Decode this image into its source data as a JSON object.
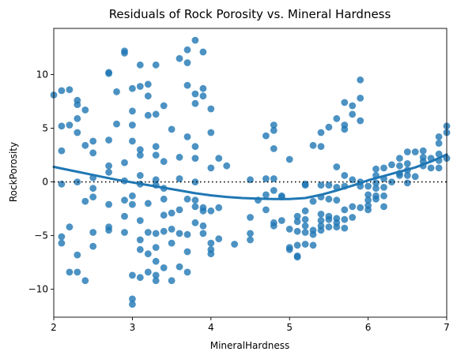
{
  "colors": {
    "points": "#1f77b4",
    "lowess": "#1f77b4",
    "reference": "#000000"
  },
  "chart_data": {
    "type": "scatter",
    "title": "Residuals of Rock Porosity vs. Mineral Hardness",
    "xlabel": "MineralHardness",
    "ylabel": "RockPorosity",
    "xlim": [
      2,
      7
    ],
    "ylim": [
      -12.6,
      14.3
    ],
    "xticks": [
      2,
      3,
      4,
      5,
      6,
      7
    ],
    "yticks": [
      -10,
      -5,
      0,
      5,
      10
    ],
    "grid": false,
    "legend": "none",
    "reference_line": {
      "y": 0,
      "style": "dotted"
    },
    "points": [
      [
        2.0,
        8.1
      ],
      [
        2.1,
        8.5
      ],
      [
        2.1,
        5.2
      ],
      [
        2.1,
        2.9
      ],
      [
        2.1,
        -0.2
      ],
      [
        2.1,
        -5.1
      ],
      [
        2.1,
        -5.7
      ],
      [
        2.2,
        8.6
      ],
      [
        2.2,
        5.3
      ],
      [
        2.2,
        -4.2
      ],
      [
        2.2,
        -8.4
      ],
      [
        2.3,
        7.6
      ],
      [
        2.3,
        7.2
      ],
      [
        2.3,
        5.9
      ],
      [
        2.3,
        4.6
      ],
      [
        2.3,
        0.0
      ],
      [
        2.3,
        -6.8
      ],
      [
        2.3,
        -8.4
      ],
      [
        2.4,
        6.7
      ],
      [
        2.4,
        3.4
      ],
      [
        2.4,
        -1.8
      ],
      [
        2.4,
        -9.2
      ],
      [
        2.5,
        3.8
      ],
      [
        2.5,
        2.7
      ],
      [
        2.5,
        0.4
      ],
      [
        2.5,
        -0.6
      ],
      [
        2.5,
        -1.4
      ],
      [
        2.5,
        -4.7
      ],
      [
        2.5,
        -6.0
      ],
      [
        2.7,
        10.1
      ],
      [
        2.7,
        10.2
      ],
      [
        2.7,
        3.9
      ],
      [
        2.7,
        1.5
      ],
      [
        2.7,
        0.9
      ],
      [
        2.7,
        -2.1
      ],
      [
        2.7,
        -4.2
      ],
      [
        2.7,
        -4.5
      ],
      [
        2.8,
        8.4
      ],
      [
        2.8,
        5.4
      ],
      [
        2.9,
        12.2
      ],
      [
        2.9,
        12.0
      ],
      [
        2.9,
        1.8
      ],
      [
        2.9,
        0.1
      ],
      [
        2.9,
        -1.7
      ],
      [
        2.9,
        -3.2
      ],
      [
        2.9,
        -4.7
      ],
      [
        3.0,
        8.7
      ],
      [
        3.0,
        6.6
      ],
      [
        3.0,
        5.3
      ],
      [
        3.0,
        3.8
      ],
      [
        3.0,
        -1.3
      ],
      [
        3.0,
        -2.1
      ],
      [
        3.0,
        -8.7
      ],
      [
        3.0,
        -10.9
      ],
      [
        3.0,
        -11.4
      ],
      [
        3.1,
        10.9
      ],
      [
        3.1,
        8.9
      ],
      [
        3.1,
        3.0
      ],
      [
        3.1,
        2.5
      ],
      [
        3.1,
        0.6
      ],
      [
        3.1,
        -0.2
      ],
      [
        3.1,
        -3.6
      ],
      [
        3.1,
        -5.4
      ],
      [
        3.1,
        -6.3
      ],
      [
        3.1,
        -8.9
      ],
      [
        3.2,
        9.1
      ],
      [
        3.2,
        8.0
      ],
      [
        3.2,
        6.2
      ],
      [
        3.2,
        -2.0
      ],
      [
        3.2,
        -4.7
      ],
      [
        3.2,
        -6.7
      ],
      [
        3.2,
        -8.4
      ],
      [
        3.3,
        10.9
      ],
      [
        3.3,
        6.3
      ],
      [
        3.3,
        3.3
      ],
      [
        3.3,
        2.5
      ],
      [
        3.3,
        0.2
      ],
      [
        3.3,
        -0.3
      ],
      [
        3.3,
        -4.8
      ],
      [
        3.3,
        -6.1
      ],
      [
        3.3,
        -7.4
      ],
      [
        3.3,
        -8.7
      ],
      [
        3.3,
        -9.2
      ],
      [
        3.4,
        7.1
      ],
      [
        3.4,
        1.9
      ],
      [
        3.4,
        -0.6
      ],
      [
        3.4,
        -1.6
      ],
      [
        3.4,
        -3.1
      ],
      [
        3.4,
        -4.6
      ],
      [
        3.4,
        -8.0
      ],
      [
        3.5,
        4.9
      ],
      [
        3.5,
        -2.9
      ],
      [
        3.5,
        -4.4
      ],
      [
        3.5,
        -5.7
      ],
      [
        3.5,
        -9.2
      ],
      [
        3.6,
        11.5
      ],
      [
        3.6,
        2.3
      ],
      [
        3.6,
        0.3
      ],
      [
        3.6,
        -2.6
      ],
      [
        3.6,
        -4.8
      ],
      [
        3.6,
        -7.9
      ],
      [
        3.7,
        12.3
      ],
      [
        3.7,
        11.1
      ],
      [
        3.7,
        9.0
      ],
      [
        3.7,
        4.2
      ],
      [
        3.7,
        -1.6
      ],
      [
        3.7,
        -4.9
      ],
      [
        3.7,
        -6.5
      ],
      [
        3.7,
        -8.4
      ],
      [
        3.8,
        13.2
      ],
      [
        3.8,
        8.2
      ],
      [
        3.8,
        7.3
      ],
      [
        3.8,
        3.3
      ],
      [
        3.8,
        2.2
      ],
      [
        3.8,
        0.0
      ],
      [
        3.8,
        -1.7
      ],
      [
        3.8,
        -2.3
      ],
      [
        3.8,
        -3.8
      ],
      [
        3.9,
        12.1
      ],
      [
        3.9,
        8.7
      ],
      [
        3.9,
        8.0
      ],
      [
        3.9,
        -2.4
      ],
      [
        3.9,
        -2.7
      ],
      [
        3.9,
        -4.1
      ],
      [
        3.9,
        -4.8
      ],
      [
        4.0,
        6.8
      ],
      [
        4.0,
        4.6
      ],
      [
        4.0,
        1.3
      ],
      [
        4.0,
        -2.7
      ],
      [
        4.0,
        -5.7
      ],
      [
        4.0,
        -6.3
      ],
      [
        4.0,
        -6.7
      ],
      [
        4.1,
        2.2
      ],
      [
        4.1,
        -2.4
      ],
      [
        4.1,
        -5.3
      ],
      [
        4.2,
        1.5
      ],
      [
        4.3,
        -5.8
      ],
      [
        4.5,
        0.2
      ],
      [
        4.5,
        -3.3
      ],
      [
        4.5,
        -4.8
      ],
      [
        4.5,
        -5.4
      ],
      [
        4.6,
        -1.7
      ],
      [
        4.7,
        4.3
      ],
      [
        4.7,
        0.3
      ],
      [
        4.7,
        -1.2
      ],
      [
        4.7,
        -2.6
      ],
      [
        4.8,
        5.3
      ],
      [
        4.8,
        4.8
      ],
      [
        4.8,
        3.1
      ],
      [
        4.8,
        0.3
      ],
      [
        4.8,
        -0.8
      ],
      [
        4.8,
        -3.8
      ],
      [
        4.8,
        -4.1
      ],
      [
        4.9,
        -1.3
      ],
      [
        4.9,
        -1.4
      ],
      [
        4.9,
        -3.6
      ],
      [
        5.0,
        2.1
      ],
      [
        5.0,
        -4.4
      ],
      [
        5.0,
        -6.1
      ],
      [
        5.0,
        -6.3
      ],
      [
        5.1,
        -3.2
      ],
      [
        5.1,
        -3.7
      ],
      [
        5.1,
        -4.6
      ],
      [
        5.1,
        -5.9
      ],
      [
        5.1,
        -6.9
      ],
      [
        5.1,
        -7.0
      ],
      [
        5.2,
        -0.2
      ],
      [
        5.2,
        -0.3
      ],
      [
        5.2,
        -2.7
      ],
      [
        5.2,
        -3.5
      ],
      [
        5.2,
        -4.1
      ],
      [
        5.2,
        -4.7
      ],
      [
        5.2,
        -5.8
      ],
      [
        5.3,
        3.4
      ],
      [
        5.3,
        -1.8
      ],
      [
        5.3,
        -4.5
      ],
      [
        5.3,
        -4.9
      ],
      [
        5.3,
        -5.9
      ],
      [
        5.4,
        4.6
      ],
      [
        5.4,
        3.3
      ],
      [
        5.4,
        -0.3
      ],
      [
        5.4,
        -1.4
      ],
      [
        5.4,
        -3.0
      ],
      [
        5.4,
        -3.6
      ],
      [
        5.4,
        -4.1
      ],
      [
        5.4,
        -4.5
      ],
      [
        5.5,
        5.1
      ],
      [
        5.5,
        -0.3
      ],
      [
        5.5,
        -1.6
      ],
      [
        5.5,
        -3.2
      ],
      [
        5.5,
        -3.5
      ],
      [
        5.5,
        -4.2
      ],
      [
        5.6,
        5.9
      ],
      [
        5.6,
        1.4
      ],
      [
        5.6,
        -0.5
      ],
      [
        5.6,
        -1.7
      ],
      [
        5.6,
        -3.4
      ],
      [
        5.6,
        -3.8
      ],
      [
        5.6,
        -4.2
      ],
      [
        5.7,
        7.4
      ],
      [
        5.7,
        5.3
      ],
      [
        5.7,
        4.9
      ],
      [
        5.7,
        0.6
      ],
      [
        5.7,
        -0.4
      ],
      [
        5.7,
        -2.6
      ],
      [
        5.7,
        -3.5
      ],
      [
        5.7,
        -4.3
      ],
      [
        5.8,
        7.1
      ],
      [
        5.8,
        6.3
      ],
      [
        5.8,
        0.2
      ],
      [
        5.8,
        -2.3
      ],
      [
        5.8,
        -3.3
      ],
      [
        5.9,
        9.5
      ],
      [
        5.9,
        7.8
      ],
      [
        5.9,
        5.7
      ],
      [
        5.9,
        0.0
      ],
      [
        5.9,
        -0.4
      ],
      [
        5.9,
        -2.4
      ],
      [
        6.0,
        -0.4
      ],
      [
        6.0,
        -1.2
      ],
      [
        6.0,
        -1.7
      ],
      [
        6.0,
        -2.2
      ],
      [
        6.0,
        -2.6
      ],
      [
        6.1,
        1.2
      ],
      [
        6.1,
        0.6
      ],
      [
        6.1,
        -0.1
      ],
      [
        6.1,
        -0.6
      ],
      [
        6.1,
        -1.3
      ],
      [
        6.1,
        -1.6
      ],
      [
        6.2,
        1.3
      ],
      [
        6.2,
        0.3
      ],
      [
        6.2,
        -0.5
      ],
      [
        6.2,
        -1.3
      ],
      [
        6.2,
        -2.3
      ],
      [
        6.3,
        1.6
      ],
      [
        6.3,
        0.0
      ],
      [
        6.4,
        2.2
      ],
      [
        6.4,
        1.5
      ],
      [
        6.4,
        0.8
      ],
      [
        6.4,
        0.6
      ],
      [
        6.5,
        2.8
      ],
      [
        6.5,
        1.7
      ],
      [
        6.5,
        1.1
      ],
      [
        6.5,
        0.6
      ],
      [
        6.5,
        -0.1
      ],
      [
        6.6,
        2.8
      ],
      [
        6.6,
        0.5
      ],
      [
        6.7,
        2.9
      ],
      [
        6.7,
        2.3
      ],
      [
        6.7,
        1.9
      ],
      [
        6.7,
        1.5
      ],
      [
        6.8,
        2.2
      ],
      [
        6.8,
        1.3
      ],
      [
        6.9,
        4.2
      ],
      [
        6.9,
        3.6
      ],
      [
        6.9,
        2.6
      ],
      [
        6.9,
        2.0
      ],
      [
        6.9,
        1.3
      ],
      [
        7.0,
        5.2
      ],
      [
        7.0,
        4.6
      ],
      [
        7.0,
        2.2
      ]
    ],
    "lowess": [
      [
        2.0,
        1.4
      ],
      [
        2.2,
        1.1
      ],
      [
        2.4,
        0.8
      ],
      [
        2.6,
        0.5
      ],
      [
        2.8,
        0.2
      ],
      [
        3.0,
        -0.05
      ],
      [
        3.2,
        -0.3
      ],
      [
        3.4,
        -0.55
      ],
      [
        3.6,
        -0.8
      ],
      [
        3.8,
        -1.05
      ],
      [
        4.0,
        -1.25
      ],
      [
        4.2,
        -1.4
      ],
      [
        4.4,
        -1.5
      ],
      [
        4.6,
        -1.55
      ],
      [
        4.8,
        -1.6
      ],
      [
        5.0,
        -1.6
      ],
      [
        5.2,
        -1.5
      ],
      [
        5.4,
        -1.2
      ],
      [
        5.6,
        -0.8
      ],
      [
        5.8,
        -0.35
      ],
      [
        6.0,
        0.15
      ],
      [
        6.2,
        0.55
      ],
      [
        6.4,
        0.95
      ],
      [
        6.6,
        1.35
      ],
      [
        6.8,
        1.9
      ],
      [
        7.0,
        2.55
      ]
    ]
  }
}
